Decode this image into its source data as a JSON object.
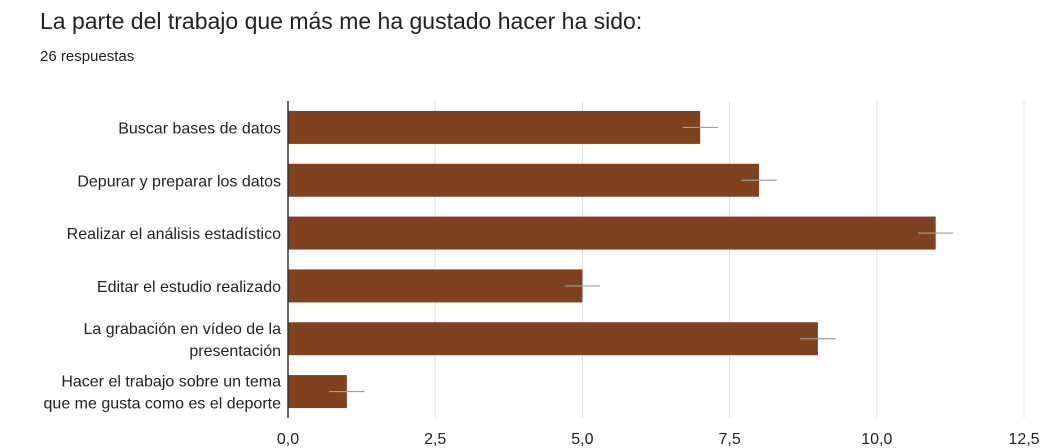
{
  "title": "La parte del trabajo que más me ha gustado hacer ha sido:",
  "subtitle": "26 respuestas",
  "colors": {
    "bar": "#7f4120",
    "grid": "#e0e0e0",
    "axis": "#333333",
    "error_bar": "#9e9e9e"
  },
  "chart_data": {
    "type": "bar",
    "orientation": "horizontal",
    "categories": [
      [
        "Buscar bases de datos"
      ],
      [
        "Depurar y preparar los datos"
      ],
      [
        "Realizar el análisis estadístico"
      ],
      [
        "Editar el estudio realizado"
      ],
      [
        "La grabación en vídeo de la",
        "presentación"
      ],
      [
        "Hacer el trabajo sobre un tema",
        "que me gusta como es el deporte"
      ]
    ],
    "values": [
      7,
      8,
      11,
      5,
      9,
      1
    ],
    "error_bar": 0.3,
    "xlim": [
      0,
      12.5
    ],
    "x_ticks": [
      0,
      2.5,
      5,
      7.5,
      10,
      12.5
    ],
    "x_tick_labels": [
      "0,0",
      "2,5",
      "5,0",
      "7,5",
      "10,0",
      "12,5"
    ],
    "grid": true
  }
}
